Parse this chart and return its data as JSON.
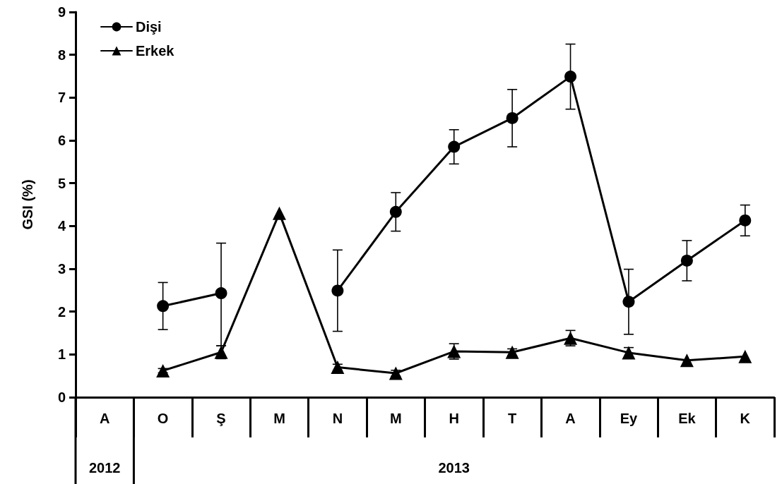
{
  "chart_data": {
    "type": "line",
    "ylabel": "GSI (%)",
    "categories": [
      "A",
      "O",
      "Ş",
      "M",
      "N",
      "M",
      "H",
      "T",
      "A",
      "Ey",
      "Ek",
      "K"
    ],
    "series": [
      {
        "name": "Dişi",
        "color": "#000000",
        "marker": "circle",
        "values": [
          null,
          2.13,
          2.43,
          null,
          2.49,
          4.33,
          5.85,
          6.52,
          7.49,
          2.23,
          3.19,
          4.13
        ],
        "errors": [
          null,
          0.55,
          [
            1.2,
            3.6
          ],
          null,
          0.95,
          0.45,
          0.4,
          0.67,
          0.76,
          0.76,
          0.47,
          0.36
        ]
      },
      {
        "name": "Erkek",
        "color": "#000000",
        "marker": "triangle",
        "values": [
          null,
          0.62,
          1.05,
          4.3,
          0.7,
          0.56,
          1.07,
          1.05,
          1.38,
          1.04,
          0.86,
          0.95
        ],
        "errors": [
          null,
          0.05,
          0.15,
          null,
          0.07,
          0.07,
          0.18,
          0.08,
          0.18,
          0.12,
          null,
          null
        ]
      }
    ],
    "ylim": [
      0,
      9
    ],
    "yticks": [
      0,
      1,
      2,
      3,
      4,
      5,
      6,
      7,
      8,
      9
    ],
    "grid": false,
    "legend": "top left",
    "line_style": "solid",
    "annotations": [
      "2012",
      "2013"
    ]
  }
}
